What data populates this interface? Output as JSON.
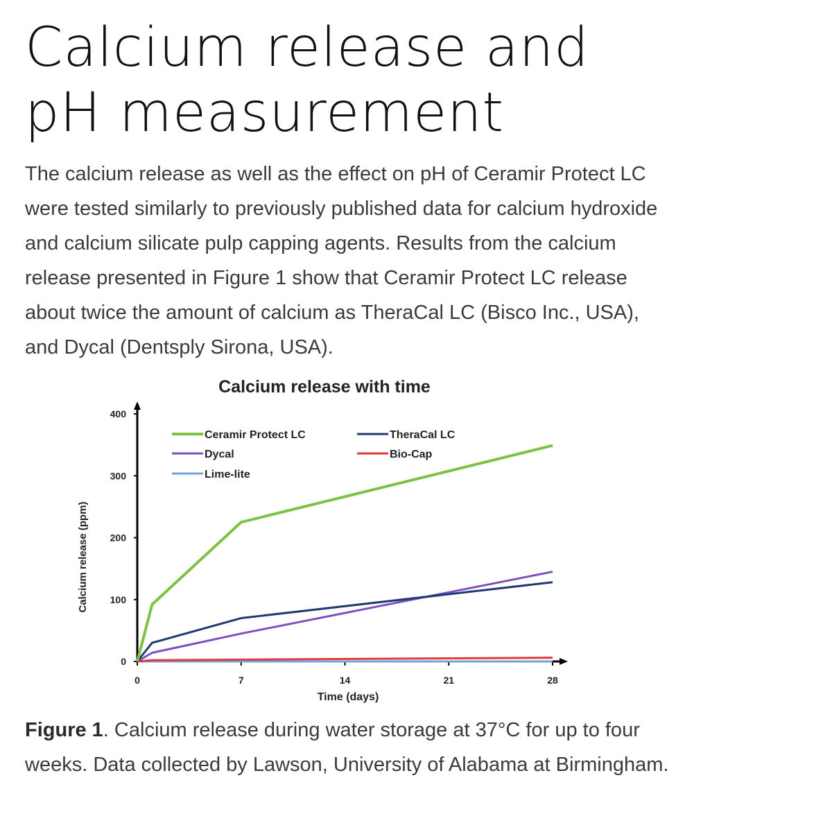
{
  "page": {
    "title": "Calcium release and pH measurement",
    "paragraph": "The calcium release as well as the effect on pH of Ceramir Protect LC were tested similarly to previously published data for calcium hydroxide and calcium silicate pulp capping agents. Results from the calcium release presented in Figure 1 show that Ceramir Protect LC release about twice the amount of calcium as TheraCal LC (Bisco Inc., USA), and Dycal (Dentsply Sirona, USA).",
    "caption_label": "Figure 1",
    "caption_text": ". Calcium release during water storage at 37°C for up to four weeks. Data collected by Lawson, University of Alabama at Birmingham."
  },
  "chart_data": {
    "type": "line",
    "title": "Calcium release with time",
    "xlabel": "Time (days)",
    "ylabel": "Calcium release (ppm)",
    "xlim": [
      0,
      28
    ],
    "ylim": [
      0,
      400
    ],
    "x_ticks": [
      "0",
      "7",
      "14",
      "21",
      "28"
    ],
    "y_ticks": [
      "0",
      "100",
      "200",
      "300",
      "400"
    ],
    "grid": false,
    "legend_position": "upper-left inside, two columns",
    "x": [
      0,
      1,
      7,
      28
    ],
    "series": [
      {
        "name": "Ceramir Protect LC",
        "color": "#7dc242",
        "values": [
          0,
          92,
          225,
          349
        ]
      },
      {
        "name": "TheraCal LC",
        "color": "#1f3a6e",
        "values": [
          0,
          30,
          70,
          128
        ]
      },
      {
        "name": "Dycal",
        "color": "#7e4fc0",
        "values": [
          0,
          14,
          45,
          145
        ]
      },
      {
        "name": "Bio-Cap",
        "color": "#e03a3a",
        "values": [
          0,
          2,
          3,
          6
        ]
      },
      {
        "name": "Lime-lite",
        "color": "#6fa3dc",
        "values": [
          0,
          0,
          0,
          0
        ]
      }
    ]
  }
}
